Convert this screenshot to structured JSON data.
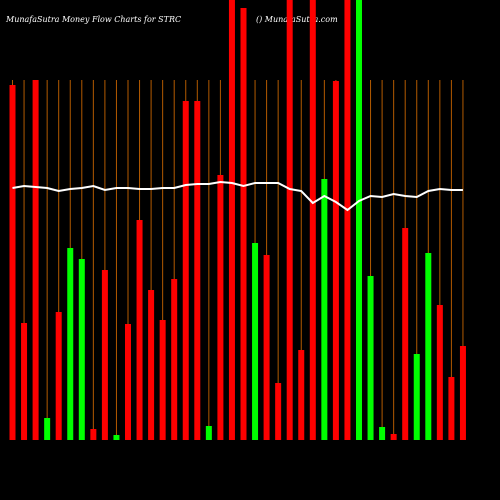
{
  "chart_data": {
    "type": "bar",
    "title": "MunafaSutra  Money Flow  Charts for STRC",
    "subtitle": "() MunafaSutra.com",
    "categories": [
      null,
      null,
      null,
      null,
      null,
      null,
      null,
      null,
      null,
      null,
      null,
      null,
      null,
      null,
      null,
      null,
      null,
      null,
      null,
      null,
      null,
      null,
      null,
      null,
      null,
      null,
      null,
      null,
      null,
      null,
      null,
      null,
      null,
      null,
      null,
      null,
      null,
      null,
      null,
      null
    ],
    "values": [
      355,
      117,
      360,
      22,
      128,
      192,
      181,
      11,
      170,
      5,
      116,
      220,
      150,
      120,
      161,
      339,
      339,
      14,
      265,
      440,
      432,
      197,
      185,
      57,
      440,
      90,
      440,
      261,
      359,
      440,
      440,
      164,
      13,
      6,
      212,
      86,
      187,
      135,
      63,
      94
    ],
    "colors": [
      "#ff0000",
      "#ff0000",
      "#ff0000",
      "#00ff00",
      "#ff0000",
      "#00ff00",
      "#00ff00",
      "#ff0000",
      "#ff0000",
      "#00ff00",
      "#ff0000",
      "#ff0000",
      "#ff0000",
      "#ff0000",
      "#ff0000",
      "#ff0000",
      "#ff0000",
      "#00ff00",
      "#ff0000",
      "#ff0000",
      "#ff0000",
      "#00ff00",
      "#ff0000",
      "#ff0000",
      "#ff0000",
      "#ff0000",
      "#ff0000",
      "#00ff00",
      "#ff0000",
      "#ff0000",
      "#00ff00",
      "#00ff00",
      "#00ff00",
      "#ff0000",
      "#ff0000",
      "#00ff00",
      "#00ff00",
      "#ff0000",
      "#ff0000",
      "#ff0000"
    ],
    "line": {
      "color": "#ffffff",
      "values": [
        252,
        254,
        253,
        252,
        249,
        251,
        252,
        254,
        250,
        252,
        252,
        251,
        251,
        252,
        252,
        255,
        256,
        256,
        258,
        257,
        254,
        257,
        257,
        257,
        251,
        249,
        237,
        244,
        238,
        230,
        239,
        244,
        243,
        246,
        244,
        243,
        249,
        251,
        250,
        250
      ]
    },
    "ylim": [
      0,
      440
    ],
    "grid_color": "#b35a00"
  }
}
